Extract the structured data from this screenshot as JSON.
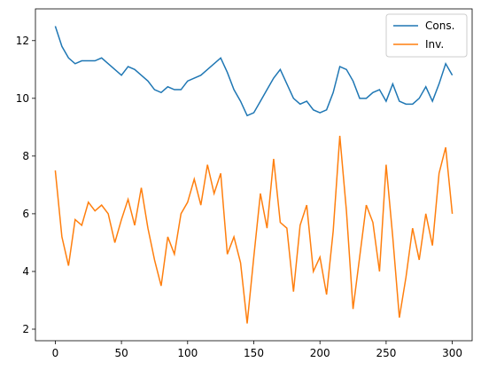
{
  "chart_data": {
    "type": "line",
    "x": [
      0,
      5,
      10,
      15,
      20,
      25,
      30,
      35,
      40,
      45,
      50,
      55,
      60,
      65,
      70,
      75,
      80,
      85,
      90,
      95,
      100,
      105,
      110,
      115,
      120,
      125,
      130,
      135,
      140,
      145,
      150,
      155,
      160,
      165,
      170,
      175,
      180,
      185,
      190,
      195,
      200,
      205,
      210,
      215,
      220,
      225,
      230,
      235,
      240,
      245,
      250,
      255,
      260,
      265,
      270,
      275,
      280,
      285,
      290,
      295,
      300
    ],
    "series": [
      {
        "name": "Cons.",
        "color": "#1f77b4",
        "values": [
          12.5,
          11.8,
          11.4,
          11.2,
          11.3,
          11.3,
          11.3,
          11.4,
          11.2,
          11.0,
          10.8,
          11.1,
          11.0,
          10.8,
          10.6,
          10.3,
          10.2,
          10.4,
          10.3,
          10.3,
          10.6,
          10.7,
          10.8,
          11.0,
          11.2,
          11.4,
          10.9,
          10.3,
          9.9,
          9.4,
          9.5,
          9.9,
          10.3,
          10.7,
          11.0,
          10.5,
          10.0,
          9.8,
          9.9,
          9.6,
          9.5,
          9.6,
          10.2,
          11.1,
          11.0,
          10.6,
          10.0,
          10.0,
          10.2,
          10.3,
          9.9,
          10.5,
          9.9,
          9.8,
          9.8,
          10.0,
          10.4,
          9.9,
          10.5,
          11.2,
          10.8
        ]
      },
      {
        "name": "Inv.",
        "color": "#ff7f0e",
        "values": [
          7.5,
          5.2,
          4.2,
          5.8,
          5.6,
          6.4,
          6.1,
          6.3,
          6.0,
          5.0,
          5.8,
          6.5,
          5.6,
          6.9,
          5.5,
          4.4,
          3.5,
          5.2,
          4.6,
          6.0,
          6.4,
          7.2,
          6.3,
          7.7,
          6.7,
          7.4,
          4.6,
          5.2,
          4.3,
          2.2,
          4.5,
          6.7,
          5.5,
          7.9,
          5.7,
          5.5,
          3.3,
          5.6,
          6.3,
          4.0,
          4.5,
          3.2,
          5.4,
          8.7,
          6.1,
          2.7,
          4.5,
          6.3,
          5.7,
          4.0,
          7.7,
          5.2,
          2.4,
          3.8,
          5.5,
          4.4,
          6.0,
          4.9,
          7.4,
          8.3,
          6.0
        ]
      }
    ],
    "xlim": [
      -15,
      315
    ],
    "ylim": [
      1.6,
      13.1
    ],
    "xticks": [
      0,
      50,
      100,
      150,
      200,
      250,
      300
    ],
    "yticks": [
      2,
      4,
      6,
      8,
      10,
      12
    ],
    "legend": "upper right"
  }
}
